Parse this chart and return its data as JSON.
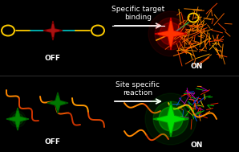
{
  "background_color": "#000000",
  "arrow_text_fontsize": 6.5,
  "label_fontsize": 6.5,
  "top_arrow_text": "Specific target\nbinding",
  "bottom_arrow_text": "Site specific\nreaction",
  "off_label": "OFF",
  "on_label": "ON",
  "arrow_color": "#ffffff",
  "text_color": "#ffffff",
  "loop_color": "#ffcc00",
  "strand_color_left": "#00cccc",
  "strand_color_right": "#00aa44",
  "strand_color_blue": "#3333ff",
  "star_dark_red": "#880000",
  "star_bright_red": "#ff2200",
  "glow_red": "#ff0000",
  "star_dark_green": "#005500",
  "star_bright_green": "#00ee00",
  "glow_green": "#00ff00",
  "protein_orange_colors": [
    "#ff8800",
    "#ff6600",
    "#ff4400",
    "#ffaa00",
    "#ee7700"
  ],
  "protein_multi_colors": [
    "#00cc00",
    "#ff2200",
    "#0044ff",
    "#ff8800",
    "#aa00aa"
  ],
  "wavy_color1": "#ff8800",
  "wavy_color2": "#cc3300"
}
